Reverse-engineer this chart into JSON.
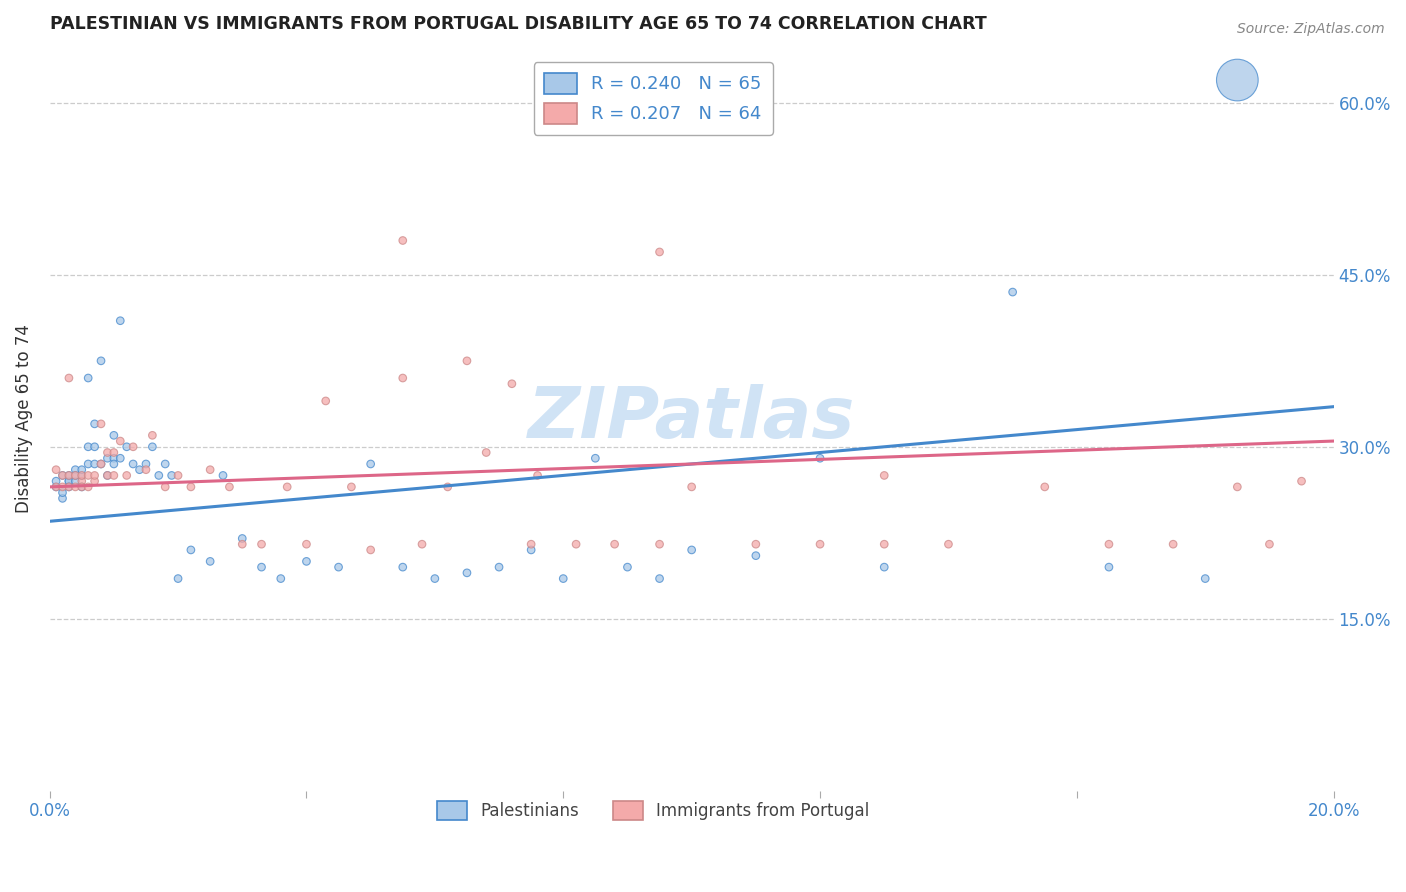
{
  "title": "PALESTINIAN VS IMMIGRANTS FROM PORTUGAL DISABILITY AGE 65 TO 74 CORRELATION CHART",
  "source": "Source: ZipAtlas.com",
  "ylabel": "Disability Age 65 to 74",
  "xlim": [
    0.0,
    0.2
  ],
  "ylim": [
    0.0,
    0.65
  ],
  "x_ticks": [
    0.0,
    0.04,
    0.08,
    0.12,
    0.16,
    0.2
  ],
  "x_tick_labels": [
    "0.0%",
    "",
    "",
    "",
    "",
    "20.0%"
  ],
  "y_tick_labels_right": [
    "15.0%",
    "30.0%",
    "45.0%",
    "60.0%"
  ],
  "y_ticks_right": [
    0.15,
    0.3,
    0.45,
    0.6
  ],
  "legend_blue_label": "R = 0.240   N = 65",
  "legend_pink_label": "R = 0.207   N = 64",
  "legend_bottom_blue": "Palestinians",
  "legend_bottom_pink": "Immigrants from Portugal",
  "blue_color": "#a8c8e8",
  "pink_color": "#f4aaaa",
  "line_blue_color": "#4488cc",
  "line_pink_color": "#dd6688",
  "background_color": "#ffffff",
  "grid_color": "#cccccc",
  "blue_scatter_x": [
    0.001,
    0.001,
    0.002,
    0.002,
    0.002,
    0.003,
    0.003,
    0.003,
    0.003,
    0.004,
    0.004,
    0.004,
    0.005,
    0.005,
    0.005,
    0.006,
    0.006,
    0.006,
    0.007,
    0.007,
    0.007,
    0.008,
    0.008,
    0.009,
    0.009,
    0.01,
    0.01,
    0.01,
    0.011,
    0.011,
    0.012,
    0.013,
    0.014,
    0.015,
    0.016,
    0.017,
    0.018,
    0.019,
    0.02,
    0.022,
    0.025,
    0.027,
    0.03,
    0.033,
    0.036,
    0.04,
    0.045,
    0.05,
    0.055,
    0.06,
    0.065,
    0.07,
    0.075,
    0.08,
    0.085,
    0.09,
    0.095,
    0.1,
    0.11,
    0.12,
    0.13,
    0.15,
    0.165,
    0.18,
    0.185
  ],
  "blue_scatter_y": [
    0.265,
    0.27,
    0.255,
    0.275,
    0.26,
    0.27,
    0.27,
    0.275,
    0.265,
    0.28,
    0.27,
    0.275,
    0.265,
    0.275,
    0.28,
    0.285,
    0.3,
    0.36,
    0.285,
    0.3,
    0.32,
    0.285,
    0.375,
    0.275,
    0.29,
    0.29,
    0.31,
    0.285,
    0.29,
    0.41,
    0.3,
    0.285,
    0.28,
    0.285,
    0.3,
    0.275,
    0.285,
    0.275,
    0.185,
    0.21,
    0.2,
    0.275,
    0.22,
    0.195,
    0.185,
    0.2,
    0.195,
    0.285,
    0.195,
    0.185,
    0.19,
    0.195,
    0.21,
    0.185,
    0.29,
    0.195,
    0.185,
    0.21,
    0.205,
    0.29,
    0.195,
    0.435,
    0.195,
    0.185,
    0.62
  ],
  "blue_scatter_sizes": [
    30,
    30,
    30,
    30,
    30,
    30,
    30,
    30,
    30,
    30,
    30,
    30,
    30,
    30,
    30,
    30,
    30,
    30,
    30,
    30,
    30,
    30,
    30,
    30,
    30,
    30,
    30,
    30,
    30,
    30,
    30,
    30,
    30,
    30,
    30,
    30,
    30,
    30,
    30,
    30,
    30,
    30,
    30,
    30,
    30,
    30,
    30,
    30,
    30,
    30,
    30,
    30,
    30,
    30,
    30,
    30,
    30,
    30,
    30,
    30,
    30,
    30,
    30,
    30,
    900
  ],
  "pink_scatter_x": [
    0.001,
    0.001,
    0.002,
    0.002,
    0.003,
    0.003,
    0.003,
    0.004,
    0.004,
    0.005,
    0.005,
    0.005,
    0.006,
    0.006,
    0.007,
    0.007,
    0.008,
    0.008,
    0.009,
    0.009,
    0.01,
    0.01,
    0.011,
    0.012,
    0.013,
    0.015,
    0.016,
    0.018,
    0.02,
    0.022,
    0.025,
    0.028,
    0.03,
    0.033,
    0.037,
    0.04,
    0.043,
    0.047,
    0.05,
    0.055,
    0.058,
    0.062,
    0.065,
    0.068,
    0.072,
    0.076,
    0.082,
    0.088,
    0.095,
    0.1,
    0.11,
    0.12,
    0.13,
    0.14,
    0.155,
    0.165,
    0.175,
    0.185,
    0.19,
    0.195,
    0.095,
    0.055,
    0.075,
    0.13
  ],
  "pink_scatter_y": [
    0.28,
    0.265,
    0.275,
    0.265,
    0.36,
    0.265,
    0.275,
    0.265,
    0.275,
    0.27,
    0.265,
    0.275,
    0.275,
    0.265,
    0.27,
    0.275,
    0.285,
    0.32,
    0.275,
    0.295,
    0.295,
    0.275,
    0.305,
    0.275,
    0.3,
    0.28,
    0.31,
    0.265,
    0.275,
    0.265,
    0.28,
    0.265,
    0.215,
    0.215,
    0.265,
    0.215,
    0.34,
    0.265,
    0.21,
    0.36,
    0.215,
    0.265,
    0.375,
    0.295,
    0.355,
    0.275,
    0.215,
    0.215,
    0.47,
    0.265,
    0.215,
    0.215,
    0.275,
    0.215,
    0.265,
    0.215,
    0.215,
    0.265,
    0.215,
    0.27,
    0.215,
    0.48,
    0.215,
    0.215
  ],
  "pink_scatter_sizes": [
    30,
    30,
    30,
    30,
    30,
    30,
    30,
    30,
    30,
    30,
    30,
    30,
    30,
    30,
    30,
    30,
    30,
    30,
    30,
    30,
    30,
    30,
    30,
    30,
    30,
    30,
    30,
    30,
    30,
    30,
    30,
    30,
    30,
    30,
    30,
    30,
    30,
    30,
    30,
    30,
    30,
    30,
    30,
    30,
    30,
    30,
    30,
    30,
    30,
    30,
    30,
    30,
    30,
    30,
    30,
    30,
    30,
    30,
    30,
    30,
    30,
    30,
    30,
    30
  ]
}
